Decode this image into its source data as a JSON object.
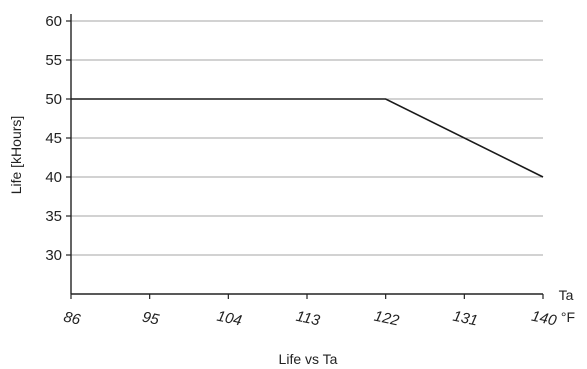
{
  "chart_data": {
    "type": "line",
    "title": "Life vs Ta",
    "xlabel": "Ta",
    "xunit": "°F",
    "ylabel": "Life [kHours]",
    "xlim": [
      86,
      140
    ],
    "ylim": [
      25,
      60
    ],
    "x_ticks": [
      "86",
      "95",
      "104",
      "113",
      "122",
      "131",
      "140"
    ],
    "y_ticks": [
      "30",
      "35",
      "40",
      "45",
      "50",
      "55",
      "60"
    ],
    "grid": "horizontal",
    "line_color": "#1a1a1a",
    "grid_color": "#a6a6a6",
    "series": [
      {
        "x": [
          86,
          122,
          140
        ],
        "y": [
          50,
          50,
          40
        ]
      }
    ]
  }
}
